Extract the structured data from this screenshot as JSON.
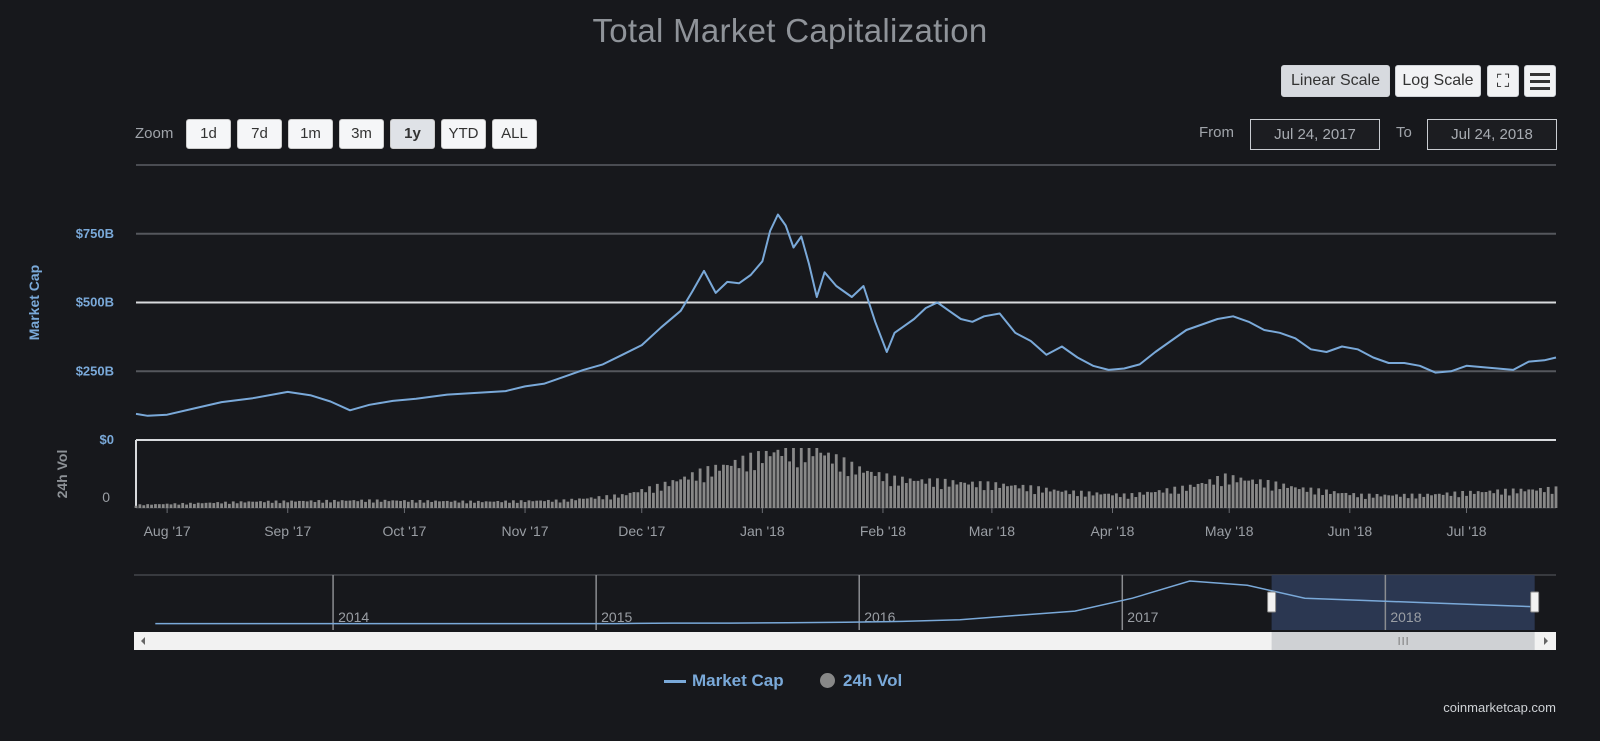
{
  "chart_data": {
    "type": "line",
    "title": "Total Market Capitalization",
    "ylabel": "Market Cap",
    "ylabel_volume": "24h Vol",
    "yticks": [
      "$0",
      "$250B",
      "$500B",
      "$750B"
    ],
    "ytick_values": [
      0,
      250,
      500,
      750
    ],
    "ylim": [
      0,
      1000
    ],
    "volume_ticks": [
      "0"
    ],
    "xticks": [
      "Aug '17",
      "Sep '17",
      "Oct '17",
      "Nov '17",
      "Dec '17",
      "Jan '18",
      "Feb '18",
      "Mar '18",
      "Apr '18",
      "May '18",
      "Jun '18",
      "Jul '18"
    ],
    "x_start": "2017-07-24",
    "x_end": "2018-07-24",
    "x_start_days": 0,
    "x_end_days": 365,
    "xtick_days": [
      8,
      39,
      69,
      100,
      130,
      161,
      192,
      220,
      251,
      281,
      312,
      342
    ],
    "series": [
      {
        "name": "Market Cap",
        "color": "#7aa9d9",
        "unit": "B USD",
        "x_days": [
          0,
          3,
          8,
          15,
          22,
          30,
          39,
          45,
          50,
          55,
          60,
          66,
          72,
          80,
          88,
          95,
          100,
          105,
          110,
          115,
          120,
          125,
          130,
          135,
          140,
          143,
          146,
          149,
          152,
          155,
          158,
          161,
          163,
          165,
          167,
          169,
          171,
          173,
          175,
          177,
          180,
          184,
          187,
          190,
          193,
          195,
          197,
          200,
          203,
          206,
          209,
          212,
          215,
          218,
          222,
          226,
          230,
          234,
          238,
          242,
          246,
          250,
          254,
          258,
          262,
          266,
          270,
          274,
          278,
          282,
          286,
          290,
          294,
          298,
          302,
          306,
          310,
          314,
          318,
          322,
          326,
          330,
          334,
          338,
          342,
          346,
          350,
          354,
          358,
          362,
          365
        ],
        "values": [
          95,
          88,
          92,
          115,
          138,
          152,
          175,
          162,
          140,
          108,
          128,
          142,
          150,
          165,
          172,
          178,
          195,
          205,
          230,
          255,
          275,
          310,
          345,
          410,
          470,
          540,
          615,
          535,
          575,
          570,
          600,
          650,
          760,
          820,
          780,
          700,
          740,
          640,
          520,
          610,
          560,
          520,
          560,
          430,
          320,
          390,
          410,
          440,
          480,
          500,
          470,
          440,
          430,
          450,
          460,
          390,
          360,
          310,
          340,
          300,
          270,
          255,
          260,
          275,
          320,
          360,
          400,
          420,
          440,
          450,
          430,
          400,
          390,
          370,
          330,
          320,
          340,
          330,
          300,
          280,
          280,
          270,
          245,
          250,
          270,
          265,
          260,
          255,
          285,
          290,
          300
        ],
        "peak": 820
      },
      {
        "name": "24h Vol",
        "color": "#888888",
        "unit": "relative",
        "x_days": [
          0,
          30,
          60,
          90,
          110,
          125,
          135,
          145,
          155,
          165,
          175,
          185,
          195,
          210,
          225,
          240,
          255,
          270,
          280,
          290,
          300,
          315,
          330,
          345,
          365
        ],
        "values": [
          5,
          10,
          12,
          10,
          12,
          20,
          35,
          55,
          72,
          88,
          90,
          62,
          45,
          40,
          35,
          25,
          20,
          32,
          48,
          40,
          30,
          20,
          20,
          25,
          30
        ]
      }
    ],
    "navigator": {
      "year_labels": [
        "2014",
        "2015",
        "2016",
        "2017",
        "2018"
      ],
      "year_fracs": [
        0.14,
        0.325,
        0.51,
        0.695,
        0.88
      ],
      "selected_range_fracs": [
        0.8,
        0.985
      ],
      "history_values": [
        1,
        1,
        1,
        1,
        1,
        1,
        1,
        1,
        1,
        2,
        2,
        3,
        4,
        6,
        10,
        20,
        30,
        60,
        100,
        90,
        60,
        55,
        50,
        45,
        40
      ]
    }
  },
  "toolbar": {
    "linear_label": "Linear Scale",
    "log_label": "Log Scale",
    "fullscreen_icon": "⛶",
    "menu_icon": "hamburger-menu"
  },
  "zoom": {
    "label": "Zoom",
    "buttons": [
      "1d",
      "7d",
      "1m",
      "3m",
      "1y",
      "YTD",
      "ALL"
    ],
    "active": "1y"
  },
  "range": {
    "from_label": "From",
    "from_value": "Jul 24, 2017",
    "to_label": "To",
    "to_value": "Jul 24, 2018"
  },
  "legend": {
    "market_cap": "Market Cap",
    "volume": "24h Vol"
  },
  "credits": "coinmarketcap.com"
}
